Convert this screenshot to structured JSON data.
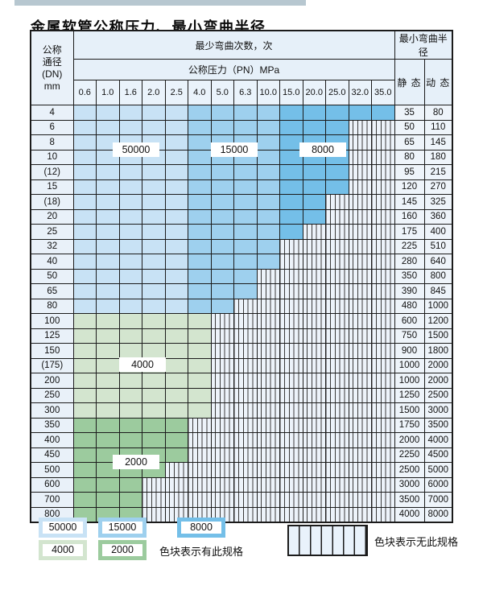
{
  "title": "金属软管公称压力、最小弯曲半径",
  "table": {
    "header": {
      "dn_label_lines": "公称\n通径\n(DN)\nmm",
      "bend_cycles_label": "最少弯曲次数，次",
      "min_radius_label": "最小弯曲半径",
      "pressure_label": "公称压力（PN）MPa",
      "pressure_columns": [
        "0.6",
        "1.0",
        "1.6",
        "2.0",
        "2.5",
        "4.0",
        "5.0",
        "6.3",
        "10.0",
        "15.0",
        "20.0",
        "25.0",
        "32.0",
        "35.0"
      ],
      "static_label": "静 态",
      "dynamic_label": "动 态"
    },
    "blue_zones": {
      "b1_max_col": 4,
      "b2_max_col": 8,
      "b3_max_col": 13
    },
    "rows": [
      {
        "dn": "4",
        "fill": "blue",
        "colored_until": 13,
        "static": "35",
        "dynamic": "80"
      },
      {
        "dn": "6",
        "fill": "blue",
        "colored_until": 11,
        "static": "50",
        "dynamic": "110"
      },
      {
        "dn": "8",
        "fill": "blue",
        "colored_until": 11,
        "static": "65",
        "dynamic": "145"
      },
      {
        "dn": "10",
        "fill": "blue",
        "colored_until": 11,
        "static": "80",
        "dynamic": "180"
      },
      {
        "dn": "(12)",
        "fill": "blue",
        "colored_until": 11,
        "static": "95",
        "dynamic": "215"
      },
      {
        "dn": "15",
        "fill": "blue",
        "colored_until": 11,
        "static": "120",
        "dynamic": "270"
      },
      {
        "dn": "(18)",
        "fill": "blue",
        "colored_until": 10,
        "static": "145",
        "dynamic": "325"
      },
      {
        "dn": "20",
        "fill": "blue",
        "colored_until": 10,
        "static": "160",
        "dynamic": "360"
      },
      {
        "dn": "25",
        "fill": "blue",
        "colored_until": 9,
        "static": "175",
        "dynamic": "400"
      },
      {
        "dn": "32",
        "fill": "blue",
        "colored_until": 8,
        "static": "225",
        "dynamic": "510"
      },
      {
        "dn": "40",
        "fill": "blue",
        "colored_until": 8,
        "static": "280",
        "dynamic": "640"
      },
      {
        "dn": "50",
        "fill": "blue",
        "colored_until": 7,
        "static": "350",
        "dynamic": "800"
      },
      {
        "dn": "65",
        "fill": "blue",
        "colored_until": 7,
        "static": "390",
        "dynamic": "845"
      },
      {
        "dn": "80",
        "fill": "blue",
        "colored_until": 6,
        "static": "480",
        "dynamic": "1000"
      },
      {
        "dn": "100",
        "fill": "green-light",
        "colored_until": 5,
        "static": "600",
        "dynamic": "1200"
      },
      {
        "dn": "125",
        "fill": "green-light",
        "colored_until": 5,
        "static": "750",
        "dynamic": "1500"
      },
      {
        "dn": "150",
        "fill": "green-light",
        "colored_until": 5,
        "static": "900",
        "dynamic": "1800"
      },
      {
        "dn": "(175)",
        "fill": "green-light",
        "colored_until": 5,
        "static": "1000",
        "dynamic": "2000"
      },
      {
        "dn": "200",
        "fill": "green-light",
        "colored_until": 5,
        "static": "1000",
        "dynamic": "2000"
      },
      {
        "dn": "250",
        "fill": "green-light",
        "colored_until": 5,
        "static": "1250",
        "dynamic": "2500"
      },
      {
        "dn": "300",
        "fill": "green-light",
        "colored_until": 5,
        "static": "1500",
        "dynamic": "3000"
      },
      {
        "dn": "350",
        "fill": "green-dark",
        "colored_until": 4,
        "static": "1750",
        "dynamic": "3500"
      },
      {
        "dn": "400",
        "fill": "green-dark",
        "colored_until": 4,
        "static": "2000",
        "dynamic": "4000"
      },
      {
        "dn": "450",
        "fill": "green-dark",
        "colored_until": 4,
        "static": "2250",
        "dynamic": "4500"
      },
      {
        "dn": "500",
        "fill": "green-dark",
        "colored_until": 3,
        "static": "2500",
        "dynamic": "5000"
      },
      {
        "dn": "600",
        "fill": "green-dark",
        "colored_until": 2,
        "static": "3000",
        "dynamic": "6000"
      },
      {
        "dn": "700",
        "fill": "green-dark",
        "colored_until": 2,
        "static": "3500",
        "dynamic": "7000"
      },
      {
        "dn": "800",
        "fill": "green-dark",
        "colored_until": 2,
        "static": "4000",
        "dynamic": "8000"
      }
    ]
  },
  "region_labels": {
    "r50000": "50000",
    "r15000": "15000",
    "r8000": "8000",
    "r4000": "4000",
    "r2000": "2000"
  },
  "legend": {
    "items": [
      {
        "value": "50000",
        "color": "#c8e2f5"
      },
      {
        "value": "15000",
        "color": "#9ed0ee"
      },
      {
        "value": "8000",
        "color": "#74bfe8"
      },
      {
        "value": "4000",
        "color": "#d3e5cf"
      },
      {
        "value": "2000",
        "color": "#9ccb9e"
      }
    ],
    "has_spec_text": "色块表示有此规格",
    "no_spec_text": "色块表示无此规格"
  },
  "colors": {
    "cycles_50000": "#c8e2f5",
    "cycles_15000": "#9ed0ee",
    "cycles_8000": "#74bfe8",
    "cycles_4000": "#d3e5cf",
    "cycles_2000": "#9ccb9e",
    "hatch_background": "#edf3fa",
    "header_background": "#e6f0f9",
    "grid_line": "#1b1b1b"
  }
}
